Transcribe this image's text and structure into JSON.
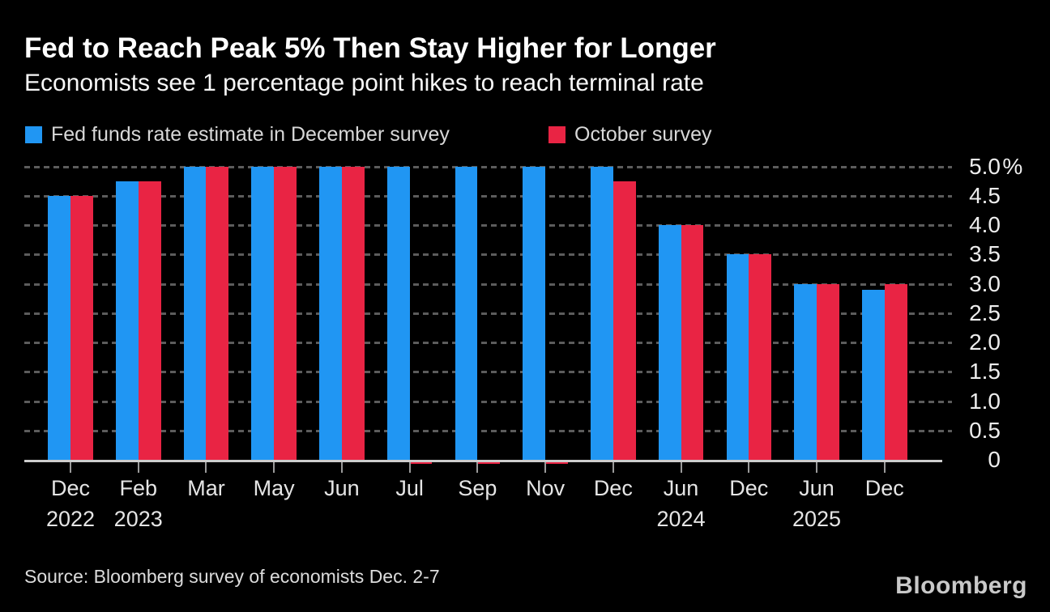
{
  "title": "Fed to Reach Peak 5% Then Stay Higher for Longer",
  "subtitle": "Economists see 1 percentage point hikes to reach terminal rate",
  "legend": [
    {
      "label": "Fed funds rate estimate in December survey",
      "color": "#2096f3"
    },
    {
      "label": "October survey",
      "color": "#e92444"
    }
  ],
  "source": "Source: Bloomberg survey of economists Dec. 2-7",
  "brand": "Bloomberg",
  "colors": {
    "background": "#000000",
    "december_survey": "#2096f3",
    "october_survey": "#e92444",
    "gridline": "#5c5c5c",
    "axis": "#cdcdcd"
  },
  "chart_data": {
    "type": "bar",
    "title": "Fed to Reach Peak 5% Then Stay Higher for Longer",
    "subtitle": "Economists see 1 percentage point hikes to reach terminal rate",
    "categories": [
      {
        "month": "Dec",
        "year": "2022"
      },
      {
        "month": "Feb",
        "year": "2023"
      },
      {
        "month": "Mar"
      },
      {
        "month": "May"
      },
      {
        "month": "Jun"
      },
      {
        "month": "Jul"
      },
      {
        "month": "Sep"
      },
      {
        "month": "Nov"
      },
      {
        "month": "Dec"
      },
      {
        "month": "Jun",
        "year": "2024"
      },
      {
        "month": "Dec"
      },
      {
        "month": "Jun",
        "year": "2025"
      },
      {
        "month": "Dec"
      }
    ],
    "series": [
      {
        "id": "december-survey",
        "name": "Fed funds rate estimate in December survey",
        "color": "#2096f3",
        "values": [
          4.5,
          4.75,
          5.0,
          5.0,
          5.0,
          5.0,
          5.0,
          5.0,
          5.0,
          4.0,
          3.5,
          3.0,
          2.9
        ]
      },
      {
        "id": "october-survey",
        "name": "October survey",
        "color": "#e92444",
        "values": [
          4.5,
          4.75,
          5.0,
          5.0,
          5.0,
          0,
          0,
          0,
          4.75,
          4.0,
          3.5,
          3.0,
          3.0
        ]
      }
    ],
    "ylim": [
      0,
      5.0
    ],
    "ytick_step": 0.5,
    "yticks": [
      "5.0%",
      "4.5",
      "4.0",
      "3.5",
      "3.0",
      "2.5",
      "2.0",
      "1.5",
      "1.0",
      "0.5",
      "0"
    ],
    "unit": "%",
    "grid": "dashed-horizontal",
    "legend_position": "top-left",
    "yaxis_position": "right"
  }
}
